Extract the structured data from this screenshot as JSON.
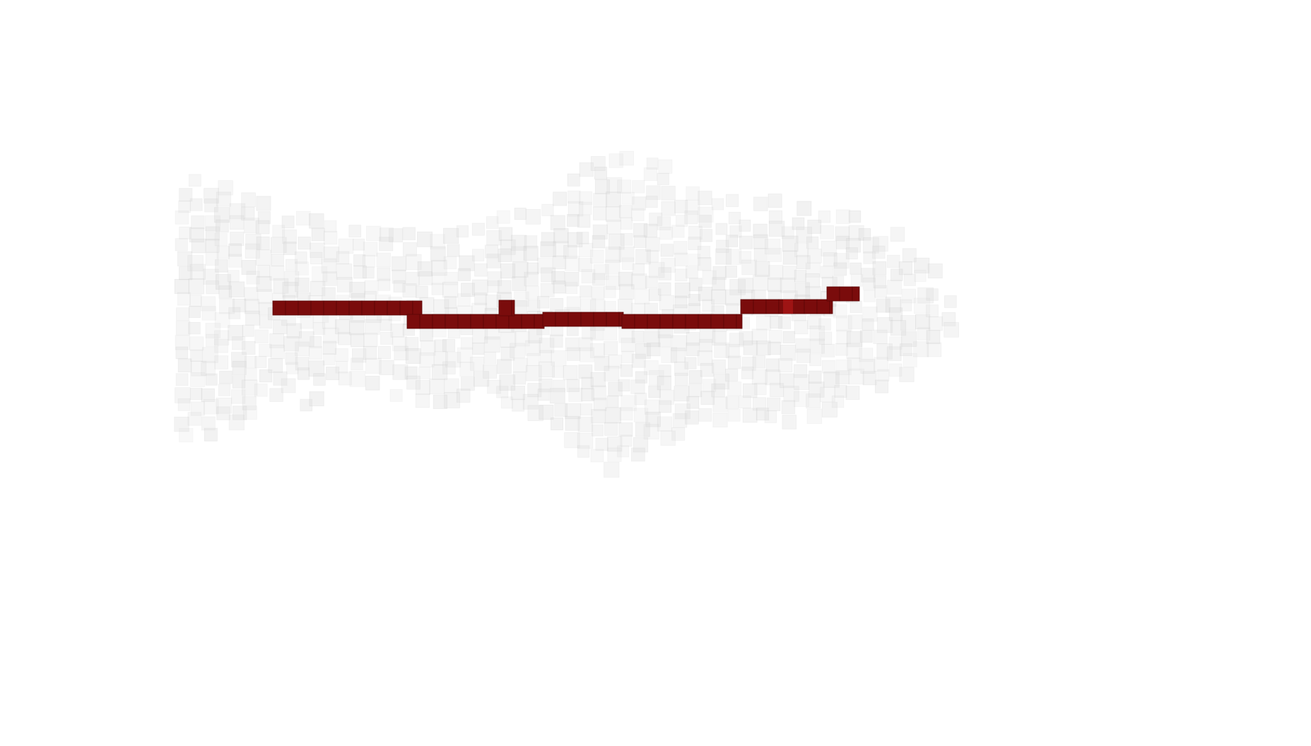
{
  "scene": {
    "background_color": "#ffffff",
    "voxel_cloud": {
      "fill_color": "#d9d9d9",
      "edge_color": "#b8b8b8",
      "opacity": 0.35
    },
    "path": {
      "fill_color": "#7a0c0c",
      "edge_color": "#5a0606",
      "highlight_color": "#9e1414"
    }
  }
}
